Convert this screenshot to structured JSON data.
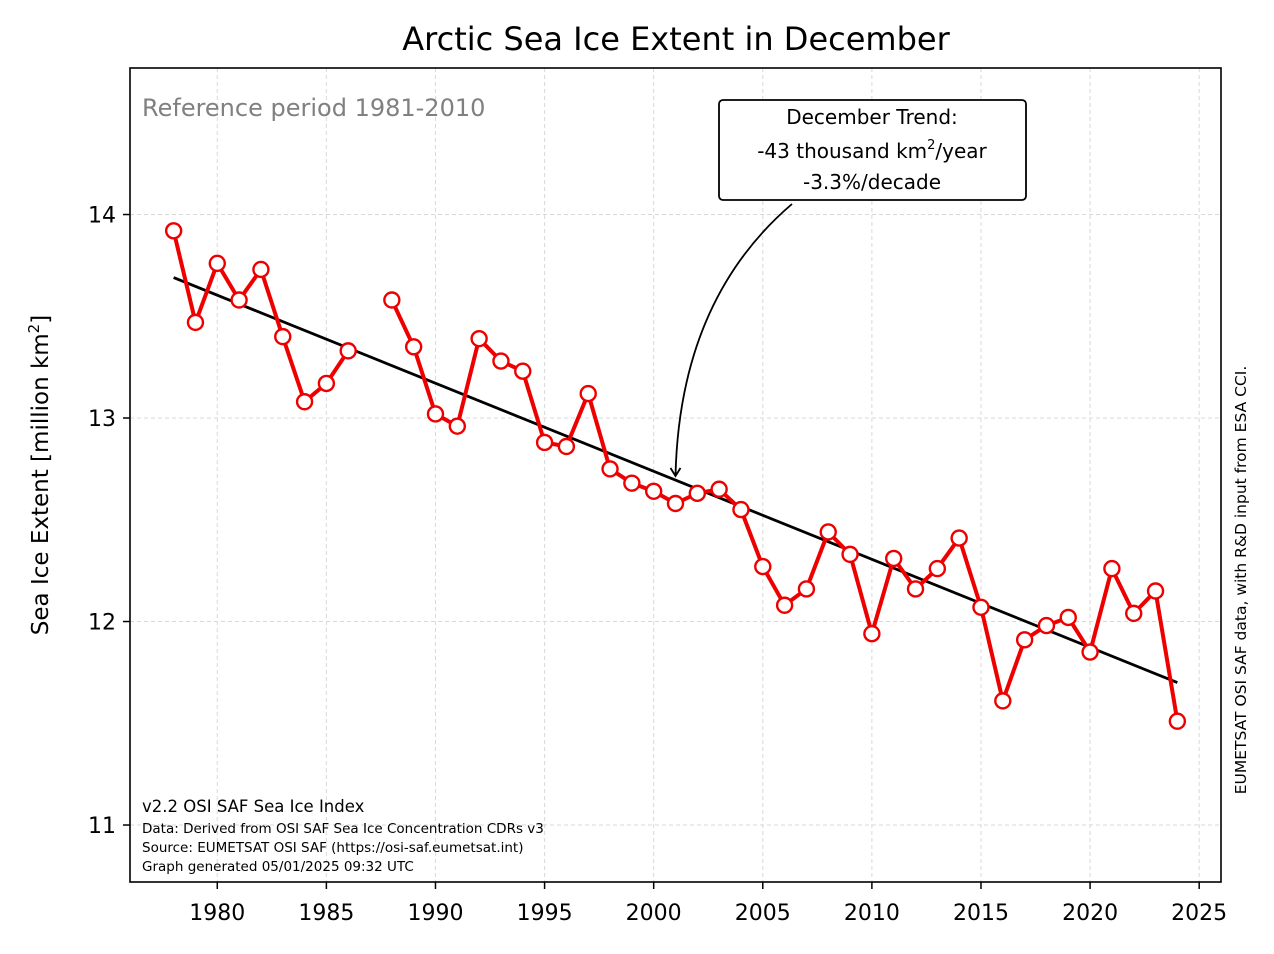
{
  "chart_data": {
    "type": "line",
    "title": "Arctic Sea Ice Extent in December",
    "xlabel": "",
    "ylabel": "Sea Ice Extent [million km²]",
    "ylabel_main": "Sea Ice Extent [million km",
    "ylabel_sup": "2",
    "ylabel_end": "]",
    "xlim": [
      1976,
      2026
    ],
    "ylim": [
      10.72,
      14.72
    ],
    "xticks": [
      1980,
      1985,
      1990,
      1995,
      2000,
      2005,
      2010,
      2015,
      2020,
      2025
    ],
    "yticks": [
      11,
      12,
      13,
      14
    ],
    "grid": true,
    "grid_style": "dashed",
    "reference_note": "Reference period 1981-2010",
    "series": [
      {
        "color": "#ee0000",
        "marker": "open-circle",
        "x": [
          1978,
          1979,
          1980,
          1981,
          1982,
          1983,
          1984,
          1985,
          1986,
          1987,
          1988,
          1989,
          1990,
          1991,
          1992,
          1993,
          1994,
          1995,
          1996,
          1997,
          1998,
          1999,
          2000,
          2001,
          2002,
          2003,
          2004,
          2005,
          2006,
          2007,
          2008,
          2009,
          2010,
          2011,
          2012,
          2013,
          2014,
          2015,
          2016,
          2017,
          2018,
          2019,
          2020,
          2021,
          2022,
          2023,
          2024
        ],
        "y": [
          13.92,
          13.47,
          13.76,
          13.58,
          13.73,
          13.4,
          13.08,
          13.17,
          13.33,
          null,
          13.58,
          13.35,
          13.02,
          12.96,
          13.39,
          13.28,
          13.23,
          12.88,
          12.86,
          13.12,
          12.75,
          12.68,
          12.64,
          12.58,
          12.63,
          12.65,
          12.55,
          12.27,
          12.08,
          12.16,
          12.44,
          12.33,
          11.94,
          12.31,
          12.16,
          12.26,
          12.41,
          12.07,
          11.61,
          11.91,
          11.98,
          12.02,
          11.85,
          12.26,
          12.04,
          12.15,
          11.51
        ]
      }
    ],
    "trend_line": {
      "color": "#000000",
      "x": [
        1978,
        2024
      ],
      "y": [
        13.69,
        11.7
      ]
    },
    "annotation": {
      "line1": "December Trend:",
      "line2_main": "-43 thousand km",
      "line2_sup": "2",
      "line2_end": "/year",
      "line3": "-3.3%/decade",
      "target_x": 2001,
      "target_y": 12.71
    },
    "credits": [
      "v2.2 OSI SAF Sea Ice Index",
      "Data: Derived from OSI SAF Sea Ice Concentration CDRs v3",
      "Source: EUMETSAT OSI SAF (https://osi-saf.eumetsat.int)",
      "Graph generated 05/01/2025 09:32 UTC"
    ],
    "side_note": "EUMETSAT OSI SAF data, with R&D input from ESA CCI."
  }
}
